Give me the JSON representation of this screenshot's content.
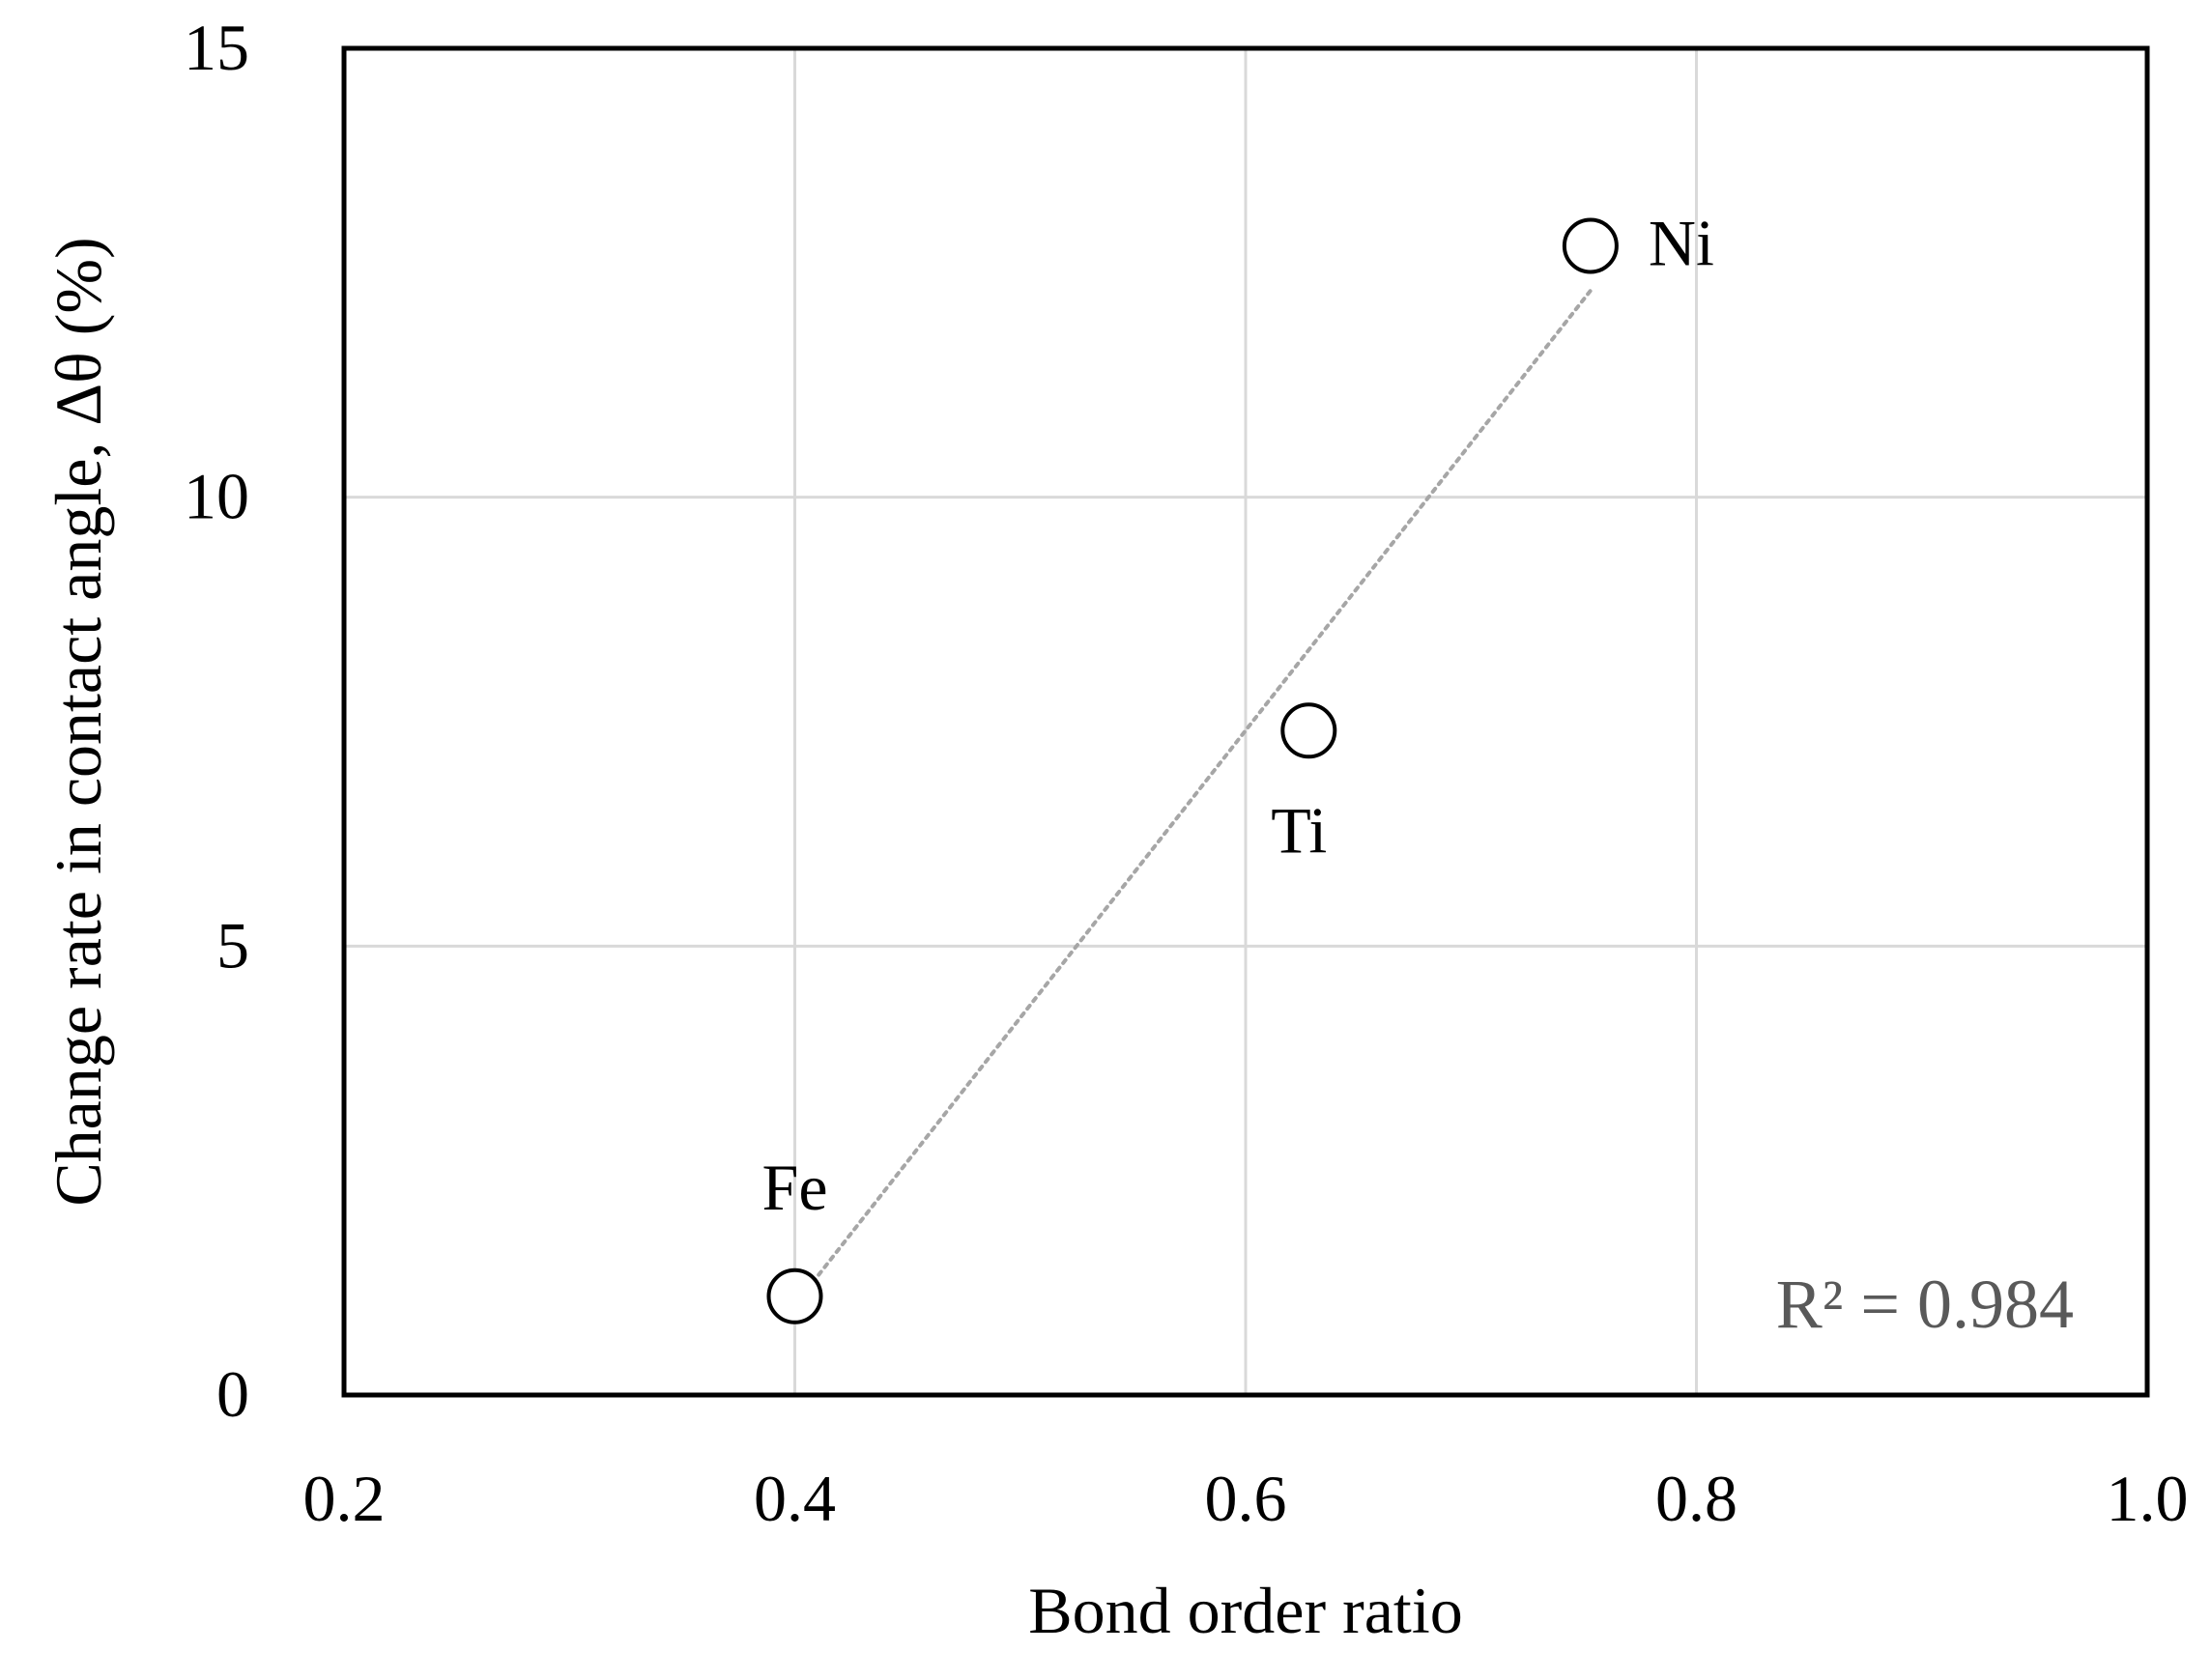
{
  "chart_data": {
    "type": "scatter",
    "title": "",
    "xlabel": "Bond order ratio",
    "ylabel": "Change rate in contact angle, Δθ (%)",
    "xlim": [
      0.2,
      1.0
    ],
    "ylim": [
      0,
      15
    ],
    "x_ticks": [
      0.2,
      0.4,
      0.6,
      0.8,
      1.0
    ],
    "x_tick_labels": [
      "0.2",
      "0.4",
      "0.6",
      "0.8",
      "1.0"
    ],
    "y_ticks": [
      0,
      5,
      10,
      15
    ],
    "y_tick_labels": [
      "0",
      "5",
      "10",
      "15"
    ],
    "grid": true,
    "legend": "none",
    "points": [
      {
        "label": "Fe",
        "x": 0.4,
        "y": 1.1,
        "label_position": "above"
      },
      {
        "label": "Ti",
        "x": 0.628,
        "y": 7.4,
        "label_position": "below"
      },
      {
        "label": "Ni",
        "x": 0.753,
        "y": 12.8,
        "label_position": "right"
      }
    ],
    "trendline": {
      "style": "dotted",
      "from": {
        "x": 0.4,
        "y": 1.0
      },
      "to": {
        "x": 0.753,
        "y": 12.3
      }
    },
    "annotation": {
      "text": "R² = 0.984",
      "position": "bottom-right"
    },
    "colors": {
      "frame": "#000000",
      "grid": "#d9d9d9",
      "trendline": "#a6a6a6",
      "marker_stroke": "#000000",
      "annotation_text": "#595959",
      "text": "#000000"
    }
  }
}
